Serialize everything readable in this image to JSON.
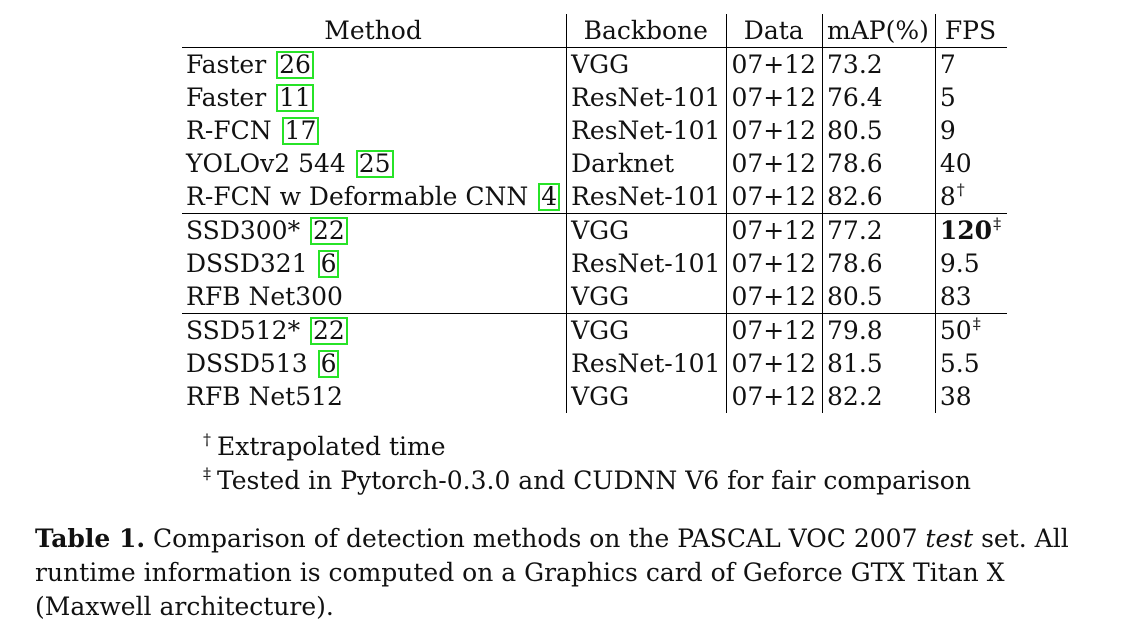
{
  "headers": [
    "Method",
    "Backbone",
    "Data",
    "mAP(%)",
    "FPS"
  ],
  "groups": [
    {
      "rows": [
        {
          "method": "Faster",
          "ref": "26",
          "backbone": "VGG",
          "data": "07+12",
          "map": "73.2",
          "fps": "7"
        },
        {
          "method": "Faster",
          "ref": "11",
          "backbone": "ResNet-101",
          "data": "07+12",
          "map": "76.4",
          "fps": "5"
        },
        {
          "method": "R-FCN",
          "ref": "17",
          "backbone": "ResNet-101",
          "data": "07+12",
          "map": "80.5",
          "fps": "9"
        },
        {
          "method": "YOLOv2 544",
          "ref": "25",
          "backbone": "Darknet",
          "data": "07+12",
          "map": "78.6",
          "fps": "40"
        },
        {
          "method": "R-FCN w Deformable CNN",
          "ref": "4",
          "backbone": "ResNet-101",
          "data": "07+12",
          "map": "82.6",
          "fps": "8",
          "fps_mark": "†"
        }
      ]
    },
    {
      "rows": [
        {
          "method": "SSD300*",
          "ref": "22",
          "backbone": "VGG",
          "data": "07+12",
          "map": "77.2",
          "fps": "120",
          "fps_mark": "‡"
        },
        {
          "method": "DSSD321",
          "ref": "6",
          "backbone": "ResNet-101",
          "data": "07+12",
          "map": "78.6",
          "fps": "9.5"
        },
        {
          "method": "RFB Net300",
          "backbone": "VGG",
          "data": "07+12",
          "map": "80.5",
          "fps": "83"
        }
      ]
    },
    {
      "rows": [
        {
          "method": "SSD512*",
          "ref": "22",
          "backbone": "VGG",
          "data": "07+12",
          "map": "79.8",
          "fps": "50",
          "fps_mark": "‡"
        },
        {
          "method": "DSSD513",
          "ref": "6",
          "backbone": "ResNet-101",
          "data": "07+12",
          "map": "81.5",
          "fps": "5.5"
        },
        {
          "method": "RFB Net512",
          "backbone": "VGG",
          "data": "07+12",
          "map": "82.2",
          "fps": "38"
        }
      ]
    }
  ],
  "footnotes": [
    {
      "mark": "†",
      "text": "Extrapolated time"
    },
    {
      "mark": "‡",
      "text": "Tested in Pytorch-0.3.0 and CUDNN V6 for fair comparison"
    }
  ],
  "caption": {
    "label": "Table 1.",
    "text_before": " Comparison of detection methods on the PASCAL VOC 2007 ",
    "emph": "test",
    "text_after": " set. All runtime information is computed on a Graphics card of Geforce GTX Titan X (Maxwell architecture)."
  },
  "colors": {
    "citation_box": "#27e327"
  }
}
